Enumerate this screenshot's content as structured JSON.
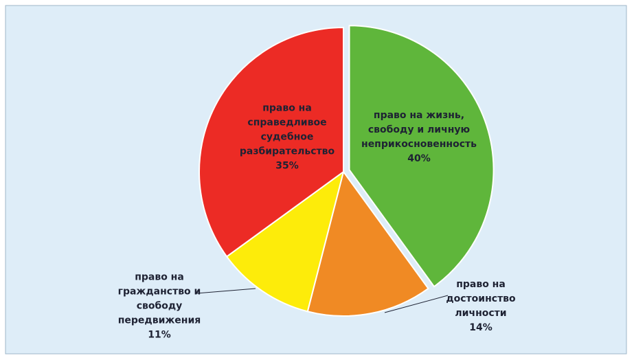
{
  "chart_data": {
    "type": "pie",
    "categories": [
      "право на жизнь, свободу и личную неприкосновенность",
      "право на достоинство личности",
      "право на гражданство и свободу передвижения",
      "право на справедливое судебное разбирательство"
    ],
    "values": [
      40,
      14,
      11,
      35
    ],
    "value_labels": [
      "40%",
      "14%",
      "11%",
      "35%"
    ],
    "colors": [
      "#5fb63b",
      "#f08a24",
      "#fdec0a",
      "#ec2b25"
    ],
    "exploded": [
      true,
      false,
      false,
      false
    ],
    "start_angle": 0,
    "direction": "clockwise"
  }
}
